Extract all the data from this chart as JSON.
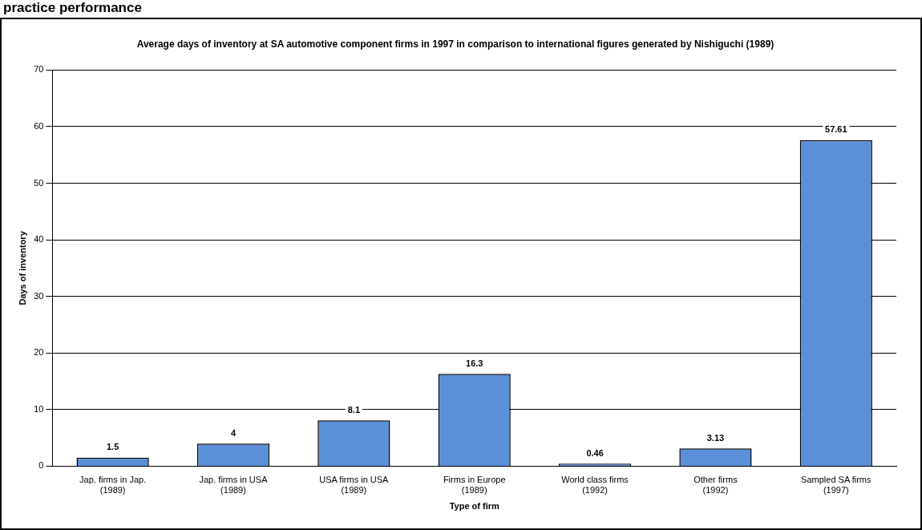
{
  "chart_data": {
    "type": "bar",
    "title": "Average days of inventory at SA automotive component firms in 1997 in comparison to international figures generated by Nishiguchi (1989)",
    "annotations": [
      "practice performance"
    ],
    "xlabel": "Type of firm",
    "ylabel": "Days of inventory",
    "categories": [
      "Jap. firms in Jap. (1989)",
      "Jap. firms in USA (1989)",
      "USA firms in USA (1989)",
      "Firms in Europe (1989)",
      "World class firms (1992)",
      "Other firms (1992)",
      "Sampled SA firms (1997)"
    ],
    "values": [
      1.5,
      4,
      8.1,
      16.3,
      0.46,
      3.13,
      57.61
    ],
    "color": "#5b8fd9",
    "ylim": [
      0,
      70
    ],
    "yticks": [
      0,
      10,
      20,
      30,
      40,
      50,
      60,
      70
    ],
    "grid": "y",
    "data_labels": true
  }
}
